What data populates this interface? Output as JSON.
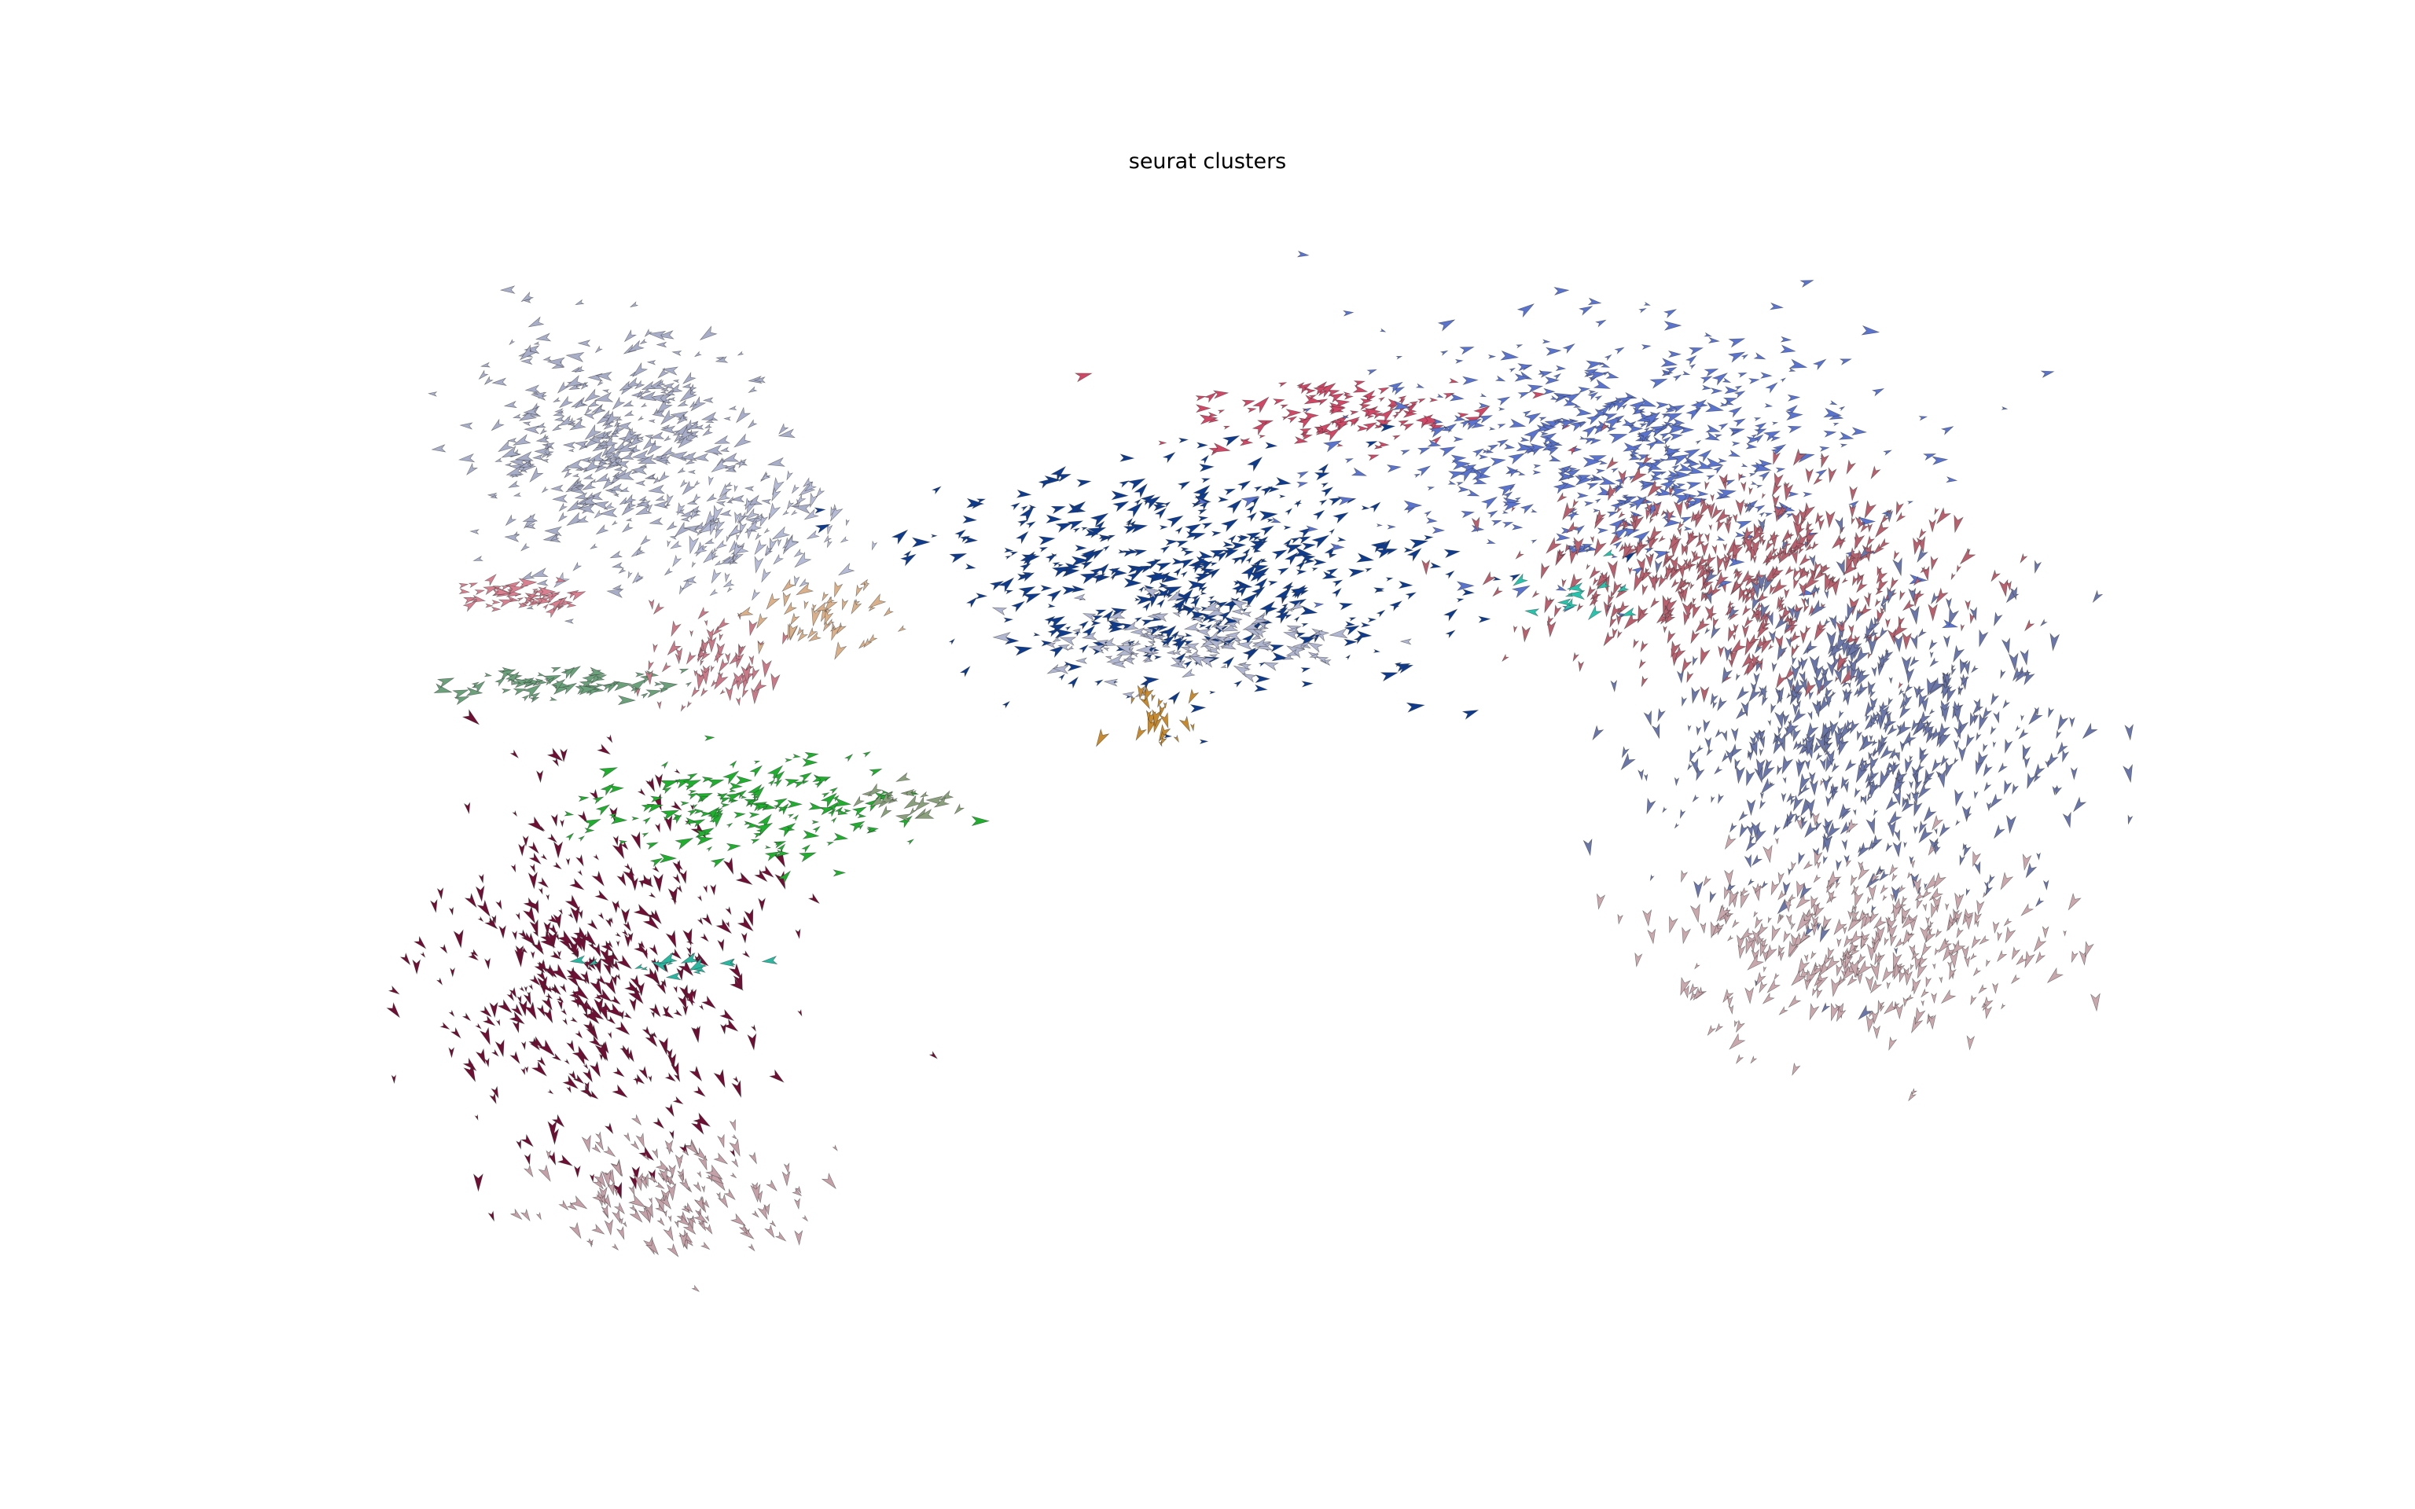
{
  "chart_data": {
    "type": "scatter",
    "title": "seurat clusters",
    "xlabel": "",
    "ylabel": "",
    "axes_visible": false,
    "grid": false,
    "legend": "none",
    "marker": "velocity-arrow",
    "xlim": [
      0,
      100
    ],
    "ylim": [
      0,
      100
    ],
    "clusters": [
      {
        "color": "#a8adc8",
        "center": [
          13,
          80
        ],
        "spread": [
          4.0,
          5.0
        ],
        "count": 420,
        "dir": 200
      },
      {
        "color": "#b5bad5",
        "center": [
          20,
          72
        ],
        "spread": [
          3.0,
          3.0
        ],
        "count": 120,
        "dir": 235
      },
      {
        "color": "#cf4866",
        "center": [
          55,
          83
        ],
        "spread": [
          4.5,
          1.6
        ],
        "count": 120,
        "dir": 15
      },
      {
        "color": "#0f3b8c",
        "center": [
          46,
          68
        ],
        "spread": [
          7.0,
          5.0
        ],
        "count": 480,
        "dir": 20
      },
      {
        "color": "#5a73cc",
        "center": [
          70,
          80
        ],
        "spread": [
          7.5,
          5.5
        ],
        "count": 520,
        "dir": 10
      },
      {
        "color": "#b7616f",
        "center": [
          77,
          68
        ],
        "spread": [
          6.0,
          4.5
        ],
        "count": 520,
        "dir": 250
      },
      {
        "color": "#6b76a8",
        "center": [
          84,
          53
        ],
        "spread": [
          5.5,
          7.5
        ],
        "count": 620,
        "dir": 255
      },
      {
        "color": "#c8a7ad",
        "center": [
          84,
          34
        ],
        "spread": [
          5.0,
          4.5
        ],
        "count": 360,
        "dir": 250
      },
      {
        "color": "#6f0f33",
        "center": [
          12,
          31
        ],
        "spread": [
          4.5,
          8.0
        ],
        "count": 430,
        "dir": 300
      },
      {
        "color": "#c4a0a8",
        "center": [
          17,
          11
        ],
        "spread": [
          3.5,
          3.0
        ],
        "count": 160,
        "dir": 300
      },
      {
        "color": "#1fae2e",
        "center": [
          21,
          46
        ],
        "spread": [
          4.5,
          2.5
        ],
        "count": 170,
        "dir": 20
      },
      {
        "color": "#6aa07a",
        "center": [
          10,
          58
        ],
        "spread": [
          3.5,
          0.6
        ],
        "count": 70,
        "dir": 15
      },
      {
        "color": "#d98090",
        "center": [
          8,
          66
        ],
        "spread": [
          2.0,
          0.8
        ],
        "count": 55,
        "dir": 20
      },
      {
        "color": "#c97a88",
        "center": [
          19,
          60
        ],
        "spread": [
          1.8,
          2.5
        ],
        "count": 70,
        "dir": 250
      },
      {
        "color": "#b0b5d0",
        "center": [
          46,
          62
        ],
        "spread": [
          4.5,
          1.8
        ],
        "count": 140,
        "dir": 180
      },
      {
        "color": "#d9b08a",
        "center": [
          25,
          64
        ],
        "spread": [
          1.8,
          1.6
        ],
        "count": 45,
        "dir": 230
      },
      {
        "color": "#c78a2e",
        "center": [
          44,
          55
        ],
        "spread": [
          1.5,
          1.0
        ],
        "count": 25,
        "dir": 270
      },
      {
        "color": "#8aa07c",
        "center": [
          30,
          47
        ],
        "spread": [
          1.5,
          0.8
        ],
        "count": 25,
        "dir": 200
      },
      {
        "color": "#2ab7a0",
        "center": [
          17,
          32
        ],
        "spread": [
          2.0,
          0.6
        ],
        "count": 15,
        "dir": 190
      },
      {
        "color": "#26c4ac",
        "center": [
          68,
          65
        ],
        "spread": [
          1.5,
          1.5
        ],
        "count": 12,
        "dir": 200
      }
    ]
  }
}
